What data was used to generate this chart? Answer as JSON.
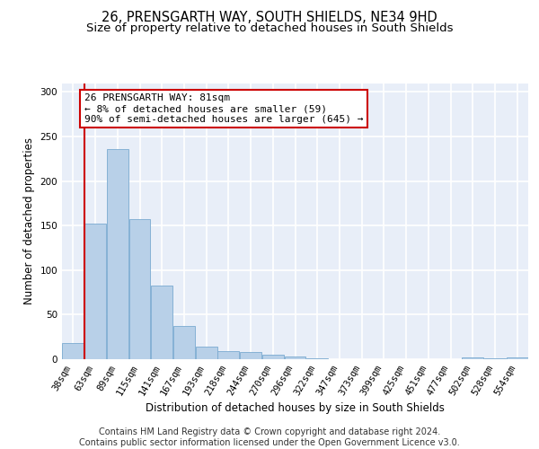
{
  "title1": "26, PRENSGARTH WAY, SOUTH SHIELDS, NE34 9HD",
  "title2": "Size of property relative to detached houses in South Shields",
  "xlabel": "Distribution of detached houses by size in South Shields",
  "ylabel": "Number of detached properties",
  "footer1": "Contains HM Land Registry data © Crown copyright and database right 2024.",
  "footer2": "Contains public sector information licensed under the Open Government Licence v3.0.",
  "annotation_line1": "26 PRENSGARTH WAY: 81sqm",
  "annotation_line2": "← 8% of detached houses are smaller (59)",
  "annotation_line3": "90% of semi-detached houses are larger (645) →",
  "bar_labels": [
    "38sqm",
    "63sqm",
    "89sqm",
    "115sqm",
    "141sqm",
    "167sqm",
    "193sqm",
    "218sqm",
    "244sqm",
    "270sqm",
    "296sqm",
    "322sqm",
    "347sqm",
    "373sqm",
    "399sqm",
    "425sqm",
    "451sqm",
    "477sqm",
    "502sqm",
    "528sqm",
    "554sqm"
  ],
  "bar_values": [
    18,
    152,
    236,
    157,
    83,
    37,
    14,
    9,
    8,
    5,
    3,
    1,
    0,
    0,
    0,
    0,
    0,
    0,
    2,
    1,
    2
  ],
  "bar_color": "#b8d0e8",
  "bar_edge_color": "#7aaad0",
  "vline_color": "#cc0000",
  "annotation_box_edge": "#cc0000",
  "ylim": [
    0,
    310
  ],
  "yticks": [
    0,
    50,
    100,
    150,
    200,
    250,
    300
  ],
  "bg_color": "#e8eef8",
  "grid_color": "#ffffff",
  "title1_fontsize": 10.5,
  "title2_fontsize": 9.5,
  "xlabel_fontsize": 8.5,
  "ylabel_fontsize": 8.5,
  "tick_fontsize": 7.5,
  "footer_fontsize": 7.0,
  "annot_fontsize": 8.0
}
